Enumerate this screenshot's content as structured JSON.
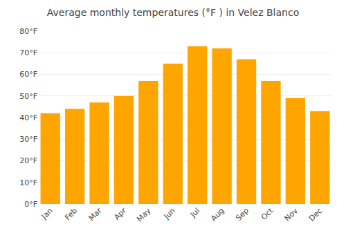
{
  "chart_data": {
    "type": "bar",
    "title": "Average monthly temperatures (°F ) in Velez Blanco",
    "categories": [
      "Jan",
      "Feb",
      "Mar",
      "Apr",
      "May",
      "Jun",
      "Jul",
      "Aug",
      "Sep",
      "Oct",
      "Nov",
      "Dec"
    ],
    "values": [
      42,
      44,
      47,
      50,
      57,
      65,
      73,
      72,
      67,
      57,
      49,
      43
    ],
    "color": "#FFA500",
    "ylim": [
      0,
      80
    ],
    "yticks": [
      {
        "value": 0,
        "label": "0°F"
      },
      {
        "value": 10,
        "label": "10°F"
      },
      {
        "value": 20,
        "label": "20°F"
      },
      {
        "value": 30,
        "label": "30°F"
      },
      {
        "value": 40,
        "label": "40°F"
      },
      {
        "value": 50,
        "label": "50°F"
      },
      {
        "value": 60,
        "label": "60°F"
      },
      {
        "value": 70,
        "label": "70°F"
      },
      {
        "value": 80,
        "label": "80°F"
      }
    ],
    "grid": true
  }
}
